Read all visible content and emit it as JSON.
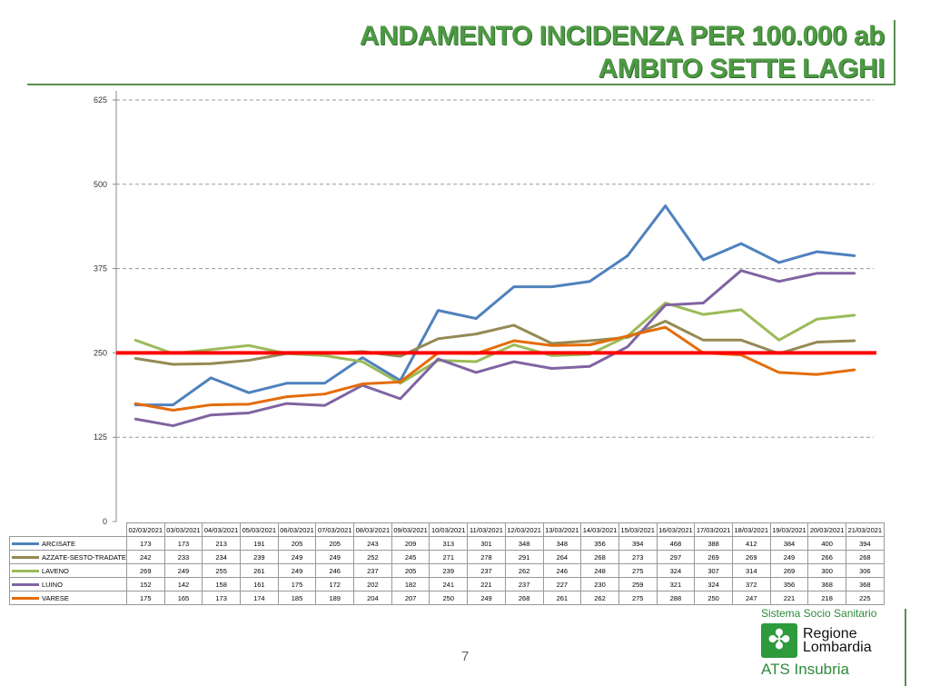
{
  "title": {
    "line1": "ANDAMENTO INCIDENZA PER 100.000 ab",
    "line2": "AMBITO SETTE LAGHI"
  },
  "page_number": "7",
  "logo": {
    "top": "Sistema Socio Sanitario",
    "name1": "Regione",
    "name2": "Lombardia",
    "sub": "ATS Insubria"
  },
  "chart_data": {
    "type": "line",
    "ylim": [
      0,
      625
    ],
    "yticks": [
      "0",
      "125",
      "250",
      "375",
      "500",
      "625"
    ],
    "threshold": 250,
    "threshold_color": "#ff0000",
    "categories": [
      "02/03/2021",
      "03/03/2021",
      "04/03/2021",
      "05/03/2021",
      "06/03/2021",
      "07/03/2021",
      "08/03/2021",
      "09/03/2021",
      "10/03/2021",
      "11/03/2021",
      "12/03/2021",
      "13/03/2021",
      "14/03/2021",
      "15/03/2021",
      "16/03/2021",
      "17/03/2021",
      "18/03/2021",
      "19/03/2021",
      "20/03/2021",
      "21/03/2021"
    ],
    "series": [
      {
        "name": "ARCISATE",
        "color": "#4f81bd",
        "values": [
          173,
          173,
          213,
          191,
          205,
          205,
          243,
          209,
          313,
          301,
          348,
          348,
          356,
          394,
          468,
          388,
          412,
          384,
          400,
          394
        ]
      },
      {
        "name": "AZZATE-SESTO-TRADATE",
        "color": "#948a54",
        "values": [
          242,
          233,
          234,
          239,
          249,
          249,
          252,
          245,
          271,
          278,
          291,
          264,
          268,
          273,
          297,
          269,
          269,
          249,
          266,
          268
        ]
      },
      {
        "name": "LAVENO",
        "color": "#9bbb59",
        "values": [
          269,
          249,
          255,
          261,
          249,
          246,
          237,
          205,
          239,
          237,
          262,
          246,
          248,
          275,
          324,
          307,
          314,
          269,
          300,
          306
        ]
      },
      {
        "name": "LUINO",
        "color": "#8064a2",
        "values": [
          152,
          142,
          158,
          161,
          175,
          172,
          202,
          182,
          241,
          221,
          237,
          227,
          230,
          259,
          321,
          324,
          372,
          356,
          368,
          368
        ]
      },
      {
        "name": "VARESE",
        "color": "#e46c0a",
        "values": [
          175,
          165,
          173,
          174,
          185,
          189,
          204,
          207,
          250,
          249,
          268,
          261,
          262,
          275,
          288,
          250,
          247,
          221,
          218,
          225
        ]
      }
    ]
  }
}
